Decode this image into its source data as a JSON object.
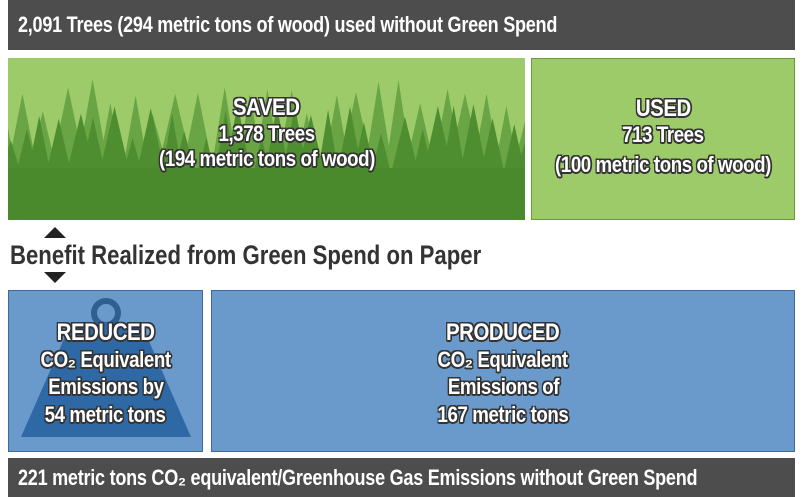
{
  "header": "2,091 Trees (294 metric tons of wood) used without Green Spend",
  "saved": {
    "title": "SAVED",
    "lines": [
      "1,378 Trees",
      "(194 metric tons of wood)"
    ]
  },
  "used": {
    "title": "USED",
    "lines": [
      "713 Trees",
      "(100 metric tons of wood)"
    ]
  },
  "benefit": "Benefit Realized from Green Spend on Paper",
  "reduced": {
    "title": "REDUCED",
    "lines": [
      "CO₂ Equivalent",
      "Emissions by",
      "54 metric tons"
    ]
  },
  "produced": {
    "title": "PRODUCED",
    "lines": [
      "CO₂ Equivalent",
      "Emissions of",
      "167 metric tons"
    ]
  },
  "footer": "221 metric tons CO₂ equivalent/Greenhouse Gas Emissions without Green Spend"
}
